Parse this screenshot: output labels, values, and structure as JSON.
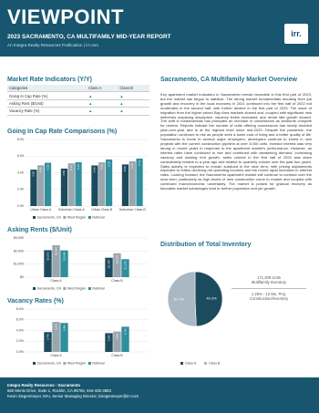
{
  "header": {
    "title": "VIEWPOINT",
    "subtitle": "2023 SACRAMENTO, CA MULTIFAMILY MID-YEAR REPORT",
    "publication": "An Integra Realty Resources Publication | irr.com",
    "logo": "irr."
  },
  "indicators": {
    "title": "Market Rate Indicators (Y/Y)",
    "columns": [
      "Categories",
      "Class A",
      "Class B"
    ],
    "rows": [
      "Going In Cap Rate (%)",
      "Asking Rent ($/Unit)",
      "Vacancy Rate (%)"
    ]
  },
  "charts": [
    {
      "type": "bar",
      "title": "Going In Cap Rate Comparisons (%)",
      "categories": [
        "Urban Class A",
        "Suburban Class A",
        "Urban Class B",
        "Suburban Class B"
      ],
      "series": [
        {
          "name": "Sacramento, CA",
          "color": "#1d4b5e",
          "values": [
            4.38,
            4.5,
            4.88,
            5.0
          ],
          "value_labels": [
            "4.38",
            "4.50",
            "4.88",
            "5.00"
          ]
        },
        {
          "name": "West Region",
          "color": "#9aa6ad",
          "values": [
            4.9,
            5.13,
            5.25,
            5.38
          ],
          "value_labels": [
            "4.90",
            "5.13",
            "5.25",
            "5.38"
          ]
        },
        {
          "name": "National",
          "color": "#2f8f9d",
          "values": [
            5.2,
            5.26,
            5.6,
            5.71
          ],
          "value_labels": [
            "5.20",
            "5.26",
            "5.60",
            "5.71"
          ]
        }
      ],
      "ylim": [
        0,
        8
      ],
      "yticks": [
        {
          "value": 0,
          "label": "0.00"
        },
        {
          "value": 2,
          "label": "2.00"
        },
        {
          "value": 4,
          "label": "4.00"
        },
        {
          "value": 6,
          "label": "6.00"
        },
        {
          "value": 8,
          "label": "8.00"
        }
      ]
    },
    {
      "type": "bar",
      "title": "Asking Rents ($/Unit)",
      "categories": [
        "Class A",
        "Class B"
      ],
      "series": [
        {
          "name": "Sacramento, CA",
          "color": "#1d4b5e",
          "values": [
            2063,
            1487
          ],
          "value_labels": [
            "$2,063",
            "$1,487"
          ]
        },
        {
          "name": "West Region",
          "color": "#9aa6ad",
          "values": [
            2449,
            1828
          ],
          "value_labels": [
            "$2,449",
            "$1,828"
          ]
        },
        {
          "name": "National",
          "color": "#2f8f9d",
          "values": [
            2048,
            1375
          ],
          "value_labels": [
            "$2,048",
            "$1,375"
          ]
        }
      ],
      "ylim": [
        0,
        3000
      ],
      "yticks": [
        {
          "value": 0,
          "label": "$0"
        },
        {
          "value": 1000,
          "label": "$1,000"
        },
        {
          "value": 2000,
          "label": "$2,000"
        },
        {
          "value": 3000,
          "label": "$3,000"
        }
      ]
    },
    {
      "type": "bar",
      "title": "Vacancy Rates (%)",
      "categories": [
        "Class A",
        "Class B"
      ],
      "series": [
        {
          "name": "Sacramento, CA",
          "color": "#1d4b5e",
          "values": [
            3.7,
            3.5
          ],
          "value_labels": [
            "3.7%",
            "3.5%"
          ]
        },
        {
          "name": "West Region",
          "color": "#9aa6ad",
          "values": [
            5.6,
            3.8
          ],
          "value_labels": [
            "5.6%",
            "3.8%"
          ]
        },
        {
          "name": "National",
          "color": "#2f8f9d",
          "values": [
            5.4,
            4.7
          ],
          "value_labels": [
            "5.4%",
            "4.7%"
          ]
        }
      ],
      "ylim": [
        0,
        8
      ],
      "yticks": [
        {
          "value": 0,
          "label": "0.0%"
        },
        {
          "value": 2,
          "label": "2.0%"
        },
        {
          "value": 4,
          "label": "4.0%"
        },
        {
          "value": 6,
          "label": "6.0%"
        },
        {
          "value": 8,
          "label": "8.0%"
        }
      ]
    },
    {
      "type": "pie",
      "title": "Distribution of Total Inventory",
      "categories": [
        "Class A",
        "Class B"
      ],
      "colors": [
        "#1d4b5e",
        "#a9b8c2"
      ],
      "values": [
        49.3,
        50.7
      ],
      "value_labels": [
        "49.3%",
        "50.7%"
      ]
    }
  ],
  "overview": {
    "title": "Sacramento, CA Multifamily Market Overview",
    "text": "Key apartment market indicators in Sacramento remain favorable in this first part of 2023, but the market has begun to stabilize. The strong market fundamentals resulting from job growth and recovery in the local economy in 2021 continued into the first half of 2022 but moderated in the second half, with further decline in the first part of 2023. The wave of migration from the higher priced Bay Area markets slowed and, coupled with significant new deliveries outpacing absorption, vacancy levels increased, and rental rate growth slowed. The shift in fundamentals has prompted an increase in concessions as landlords compete for renters. Reports indicate the number of units offering concessions has nearly doubled year-over-year and is at the highest level since mid-2020. Despite the pandemic, the population continues to rise as people seek a lower cost of living and a better quality of life. Sacramento is home to several major employers, developers continue to invest in new projects with the current construction pipeline at over 3,000 units. Investor interest was very strong in recent years in response to the apartment market's performance. However, as interest rates have continued to rise and combined with weakening demand, increasing vacancy and slowing rent growth, sales volume in the first half of 2023 was down considerably relative to a year ago and relative to quarterly volume over the past four years. Sales activity is expected to remain subdued in the near term, with pricing adjustments expected to reflect declining net operating incomes and the recent rapid increases in interest rates. Looking forward, the Sacramento apartment market will continue to contract over the near term, particularly as high levels of new construction come to market and coupled with continued macroeconomic uncertainty. The market is poised for gradual recovery as favorable market advantages lead to further population and job growth."
  },
  "inventory_notes": [
    {
      "value": "171,408 Units",
      "label": "Multifamily Inventory"
    },
    {
      "value": "1.26% - 12 Mo. Proj.",
      "label": "Construction/Inventory"
    }
  ],
  "footer": {
    "office": "Integra Realty Resources - Sacramento",
    "address": "660 Menlo Drive, Suite 1, Rocklin, CA 95765, 916-435-3883",
    "contact": "Kevin Ziegenmeyer, MAI, Senior Managing Director, kziegenmeyer@irr.com"
  }
}
